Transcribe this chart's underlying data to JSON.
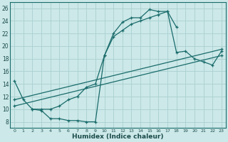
{
  "xlabel": "Humidex (Indice chaleur)",
  "ylabel": "",
  "bg_color": "#cce8e8",
  "grid_color": "#aad0d0",
  "line_color": "#1a6b6b",
  "xlim": [
    -0.5,
    23.5
  ],
  "ylim": [
    7,
    27
  ],
  "xticks": [
    0,
    1,
    2,
    3,
    4,
    5,
    6,
    7,
    8,
    9,
    10,
    11,
    12,
    13,
    14,
    15,
    16,
    17,
    18,
    19,
    20,
    21,
    22,
    23
  ],
  "yticks": [
    8,
    10,
    12,
    14,
    16,
    18,
    20,
    22,
    24,
    26
  ],
  "series1_x": [
    0,
    1,
    2,
    3,
    4,
    5,
    6,
    7,
    8,
    9,
    10,
    11,
    12,
    13,
    14,
    15,
    16,
    17,
    18
  ],
  "series1_y": [
    14.5,
    11.5,
    10.0,
    9.8,
    8.5,
    8.5,
    8.2,
    8.2,
    8.0,
    8.0,
    18.5,
    22.0,
    23.8,
    24.5,
    24.5,
    25.8,
    25.5,
    25.5,
    23.0
  ],
  "series2_x": [
    2,
    3,
    4,
    5,
    6,
    7,
    8,
    9,
    10,
    11,
    12,
    13,
    14,
    15,
    16,
    17,
    18,
    19,
    20,
    21,
    22,
    23
  ],
  "series2_y": [
    10.0,
    10.0,
    10.0,
    10.5,
    11.5,
    12.0,
    13.5,
    14.0,
    18.5,
    21.5,
    22.5,
    23.5,
    24.0,
    24.5,
    25.0,
    25.5,
    19.0,
    19.2,
    18.0,
    17.5,
    17.0,
    19.2
  ],
  "series3_x": [
    0,
    23
  ],
  "series3_y": [
    10.5,
    18.5
  ],
  "series4_x": [
    0,
    23
  ],
  "series4_y": [
    11.5,
    19.5
  ]
}
